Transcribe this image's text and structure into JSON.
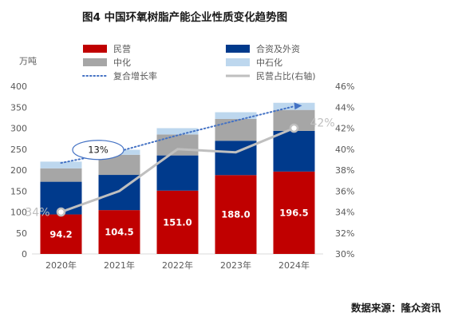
{
  "chart_data": {
    "type": "bar",
    "title": "图4 中国环氧树脂产能企业性质变化趋势图",
    "unit_label": "万吨",
    "categories": [
      "2020年",
      "2021年",
      "2022年",
      "2023年",
      "2024年"
    ],
    "stack_order": [
      "民营",
      "合资及外资",
      "中石化"
    ],
    "series": [
      {
        "name": "民营",
        "values": [
          94.2,
          104.5,
          151.0,
          188.0,
          196.5
        ],
        "color": "#c00000",
        "data_labels": [
          "94.2",
          "104.5",
          "151.0",
          "188.0",
          "196.5"
        ]
      },
      {
        "name": "合资及外资",
        "values": [
          78,
          84,
          84,
          82,
          97
        ],
        "color": "#003a8c"
      },
      {
        "name": "中化",
        "values": [
          32,
          48,
          50,
          52,
          50
        ],
        "color": "#a6a6a6"
      },
      {
        "name": "中石化",
        "values": [
          16,
          12,
          15,
          16,
          17
        ],
        "color": "#bdd7ee"
      }
    ],
    "line_series": [
      {
        "name": "复合增长率",
        "axis": "left",
        "style": "dotted",
        "color": "#4472c4",
        "values": [
          217,
          245,
          283,
          318,
          352
        ]
      },
      {
        "name": "民营占比(右轴)",
        "axis": "right",
        "style": "solid",
        "color": "#bfbfbf",
        "values": [
          34.0,
          36.0,
          40.0,
          39.7,
          42.0
        ]
      }
    ],
    "y_left": {
      "min": 0,
      "max": 400,
      "step": 50
    },
    "y_right": {
      "min": 30,
      "max": 46,
      "step": 2,
      "format": "%"
    },
    "annotations": {
      "cagr_callout": "13%",
      "share_start": "34%",
      "share_end": "42%"
    },
    "legend_position": "top",
    "grid": false
  },
  "source_text": "数据来源：隆众资讯"
}
